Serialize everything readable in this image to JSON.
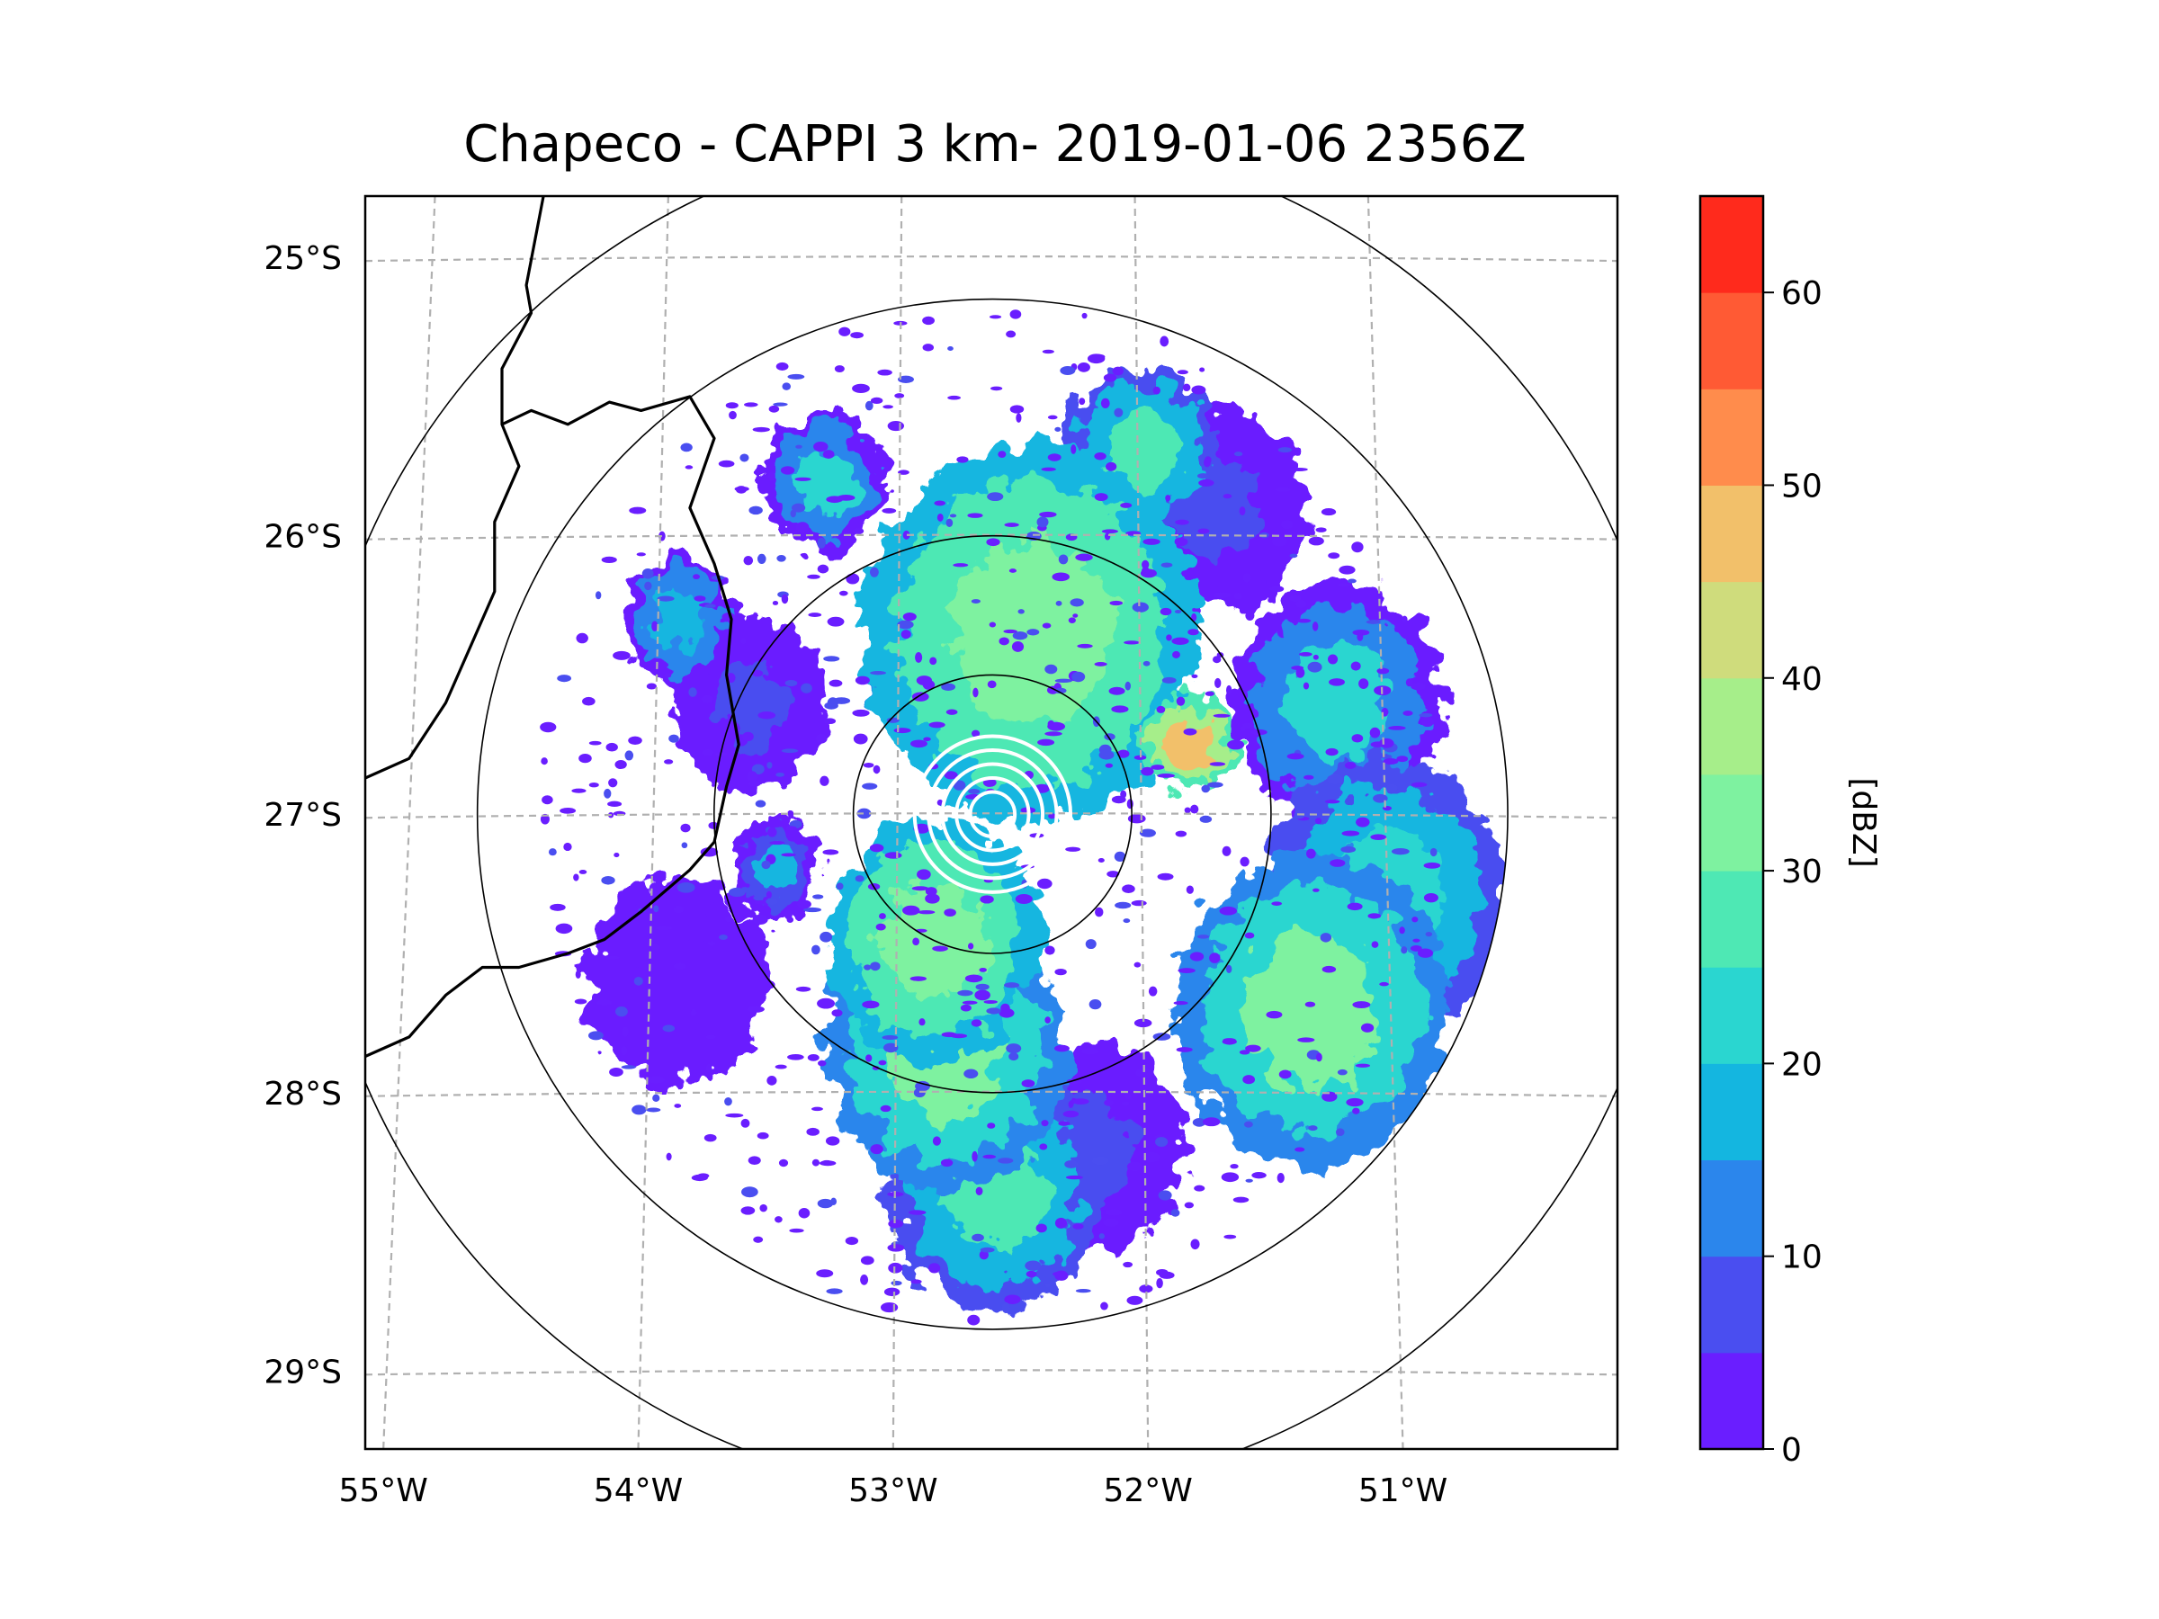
{
  "figure": {
    "title": "Chapeco - CAPPI 3 km- 2019-01-06 2356Z"
  },
  "map": {
    "lon_range": [
      -55.18,
      -50.05
    ],
    "lat_range": [
      -29.28,
      -24.78
    ],
    "radar_center": {
      "lon": -52.61,
      "lat": -27.0
    },
    "range_rings_deg": [
      0.5,
      1.0,
      1.85,
      2.45
    ],
    "data_extent_deg": 1.85,
    "lon_ticks": [
      {
        "value": -55,
        "label": "55°W"
      },
      {
        "value": -54,
        "label": "54°W"
      },
      {
        "value": -53,
        "label": "53°W"
      },
      {
        "value": -52,
        "label": "52°W"
      },
      {
        "value": -51,
        "label": "51°W"
      }
    ],
    "lat_ticks": [
      {
        "value": -25,
        "label": "25°S"
      },
      {
        "value": -26,
        "label": "26°S"
      },
      {
        "value": -27,
        "label": "27°S"
      },
      {
        "value": -28,
        "label": "28°S"
      },
      {
        "value": -29,
        "label": "29°S"
      }
    ]
  },
  "colorbar": {
    "label": "[dBZ]",
    "min": 0,
    "max": 65,
    "ticks": [
      {
        "value": 0,
        "label": "0"
      },
      {
        "value": 10,
        "label": "10"
      },
      {
        "value": 20,
        "label": "20"
      },
      {
        "value": 30,
        "label": "30"
      },
      {
        "value": 40,
        "label": "40"
      },
      {
        "value": 50,
        "label": "50"
      },
      {
        "value": 60,
        "label": "60"
      }
    ],
    "levels": [
      {
        "from": 0,
        "to": 5,
        "color": "#6a1eff"
      },
      {
        "from": 5,
        "to": 10,
        "color": "#4a4ef0"
      },
      {
        "from": 10,
        "to": 15,
        "color": "#2b86ec"
      },
      {
        "from": 15,
        "to": 20,
        "color": "#14b6e0"
      },
      {
        "from": 20,
        "to": 25,
        "color": "#2ad6d0"
      },
      {
        "from": 25,
        "to": 30,
        "color": "#4ee8b4"
      },
      {
        "from": 30,
        "to": 35,
        "color": "#7ef2a0"
      },
      {
        "from": 35,
        "to": 40,
        "color": "#a6ee8a"
      },
      {
        "from": 40,
        "to": 45,
        "color": "#cfdc7c"
      },
      {
        "from": 45,
        "to": 50,
        "color": "#f2c06a"
      },
      {
        "from": 50,
        "to": 55,
        "color": "#ff8c4c"
      },
      {
        "from": 55,
        "to": 60,
        "color": "#ff5a34"
      },
      {
        "from": 60,
        "to": 65,
        "color": "#ff2a1c"
      }
    ]
  },
  "precip_cells": [
    {
      "lon": -52.45,
      "lat": -26.35,
      "r": 0.55,
      "dbz": 33
    },
    {
      "lon": -52.75,
      "lat": -26.45,
      "r": 0.3,
      "dbz": 30
    },
    {
      "lon": -52.25,
      "lat": -26.6,
      "r": 0.25,
      "dbz": 28
    },
    {
      "lon": -52.85,
      "lat": -27.45,
      "r": 0.35,
      "dbz": 34
    },
    {
      "lon": -52.8,
      "lat": -27.85,
      "r": 0.4,
      "dbz": 32
    },
    {
      "lon": -52.6,
      "lat": -28.35,
      "r": 0.35,
      "dbz": 27
    },
    {
      "lon": -51.3,
      "lat": -27.7,
      "r": 0.45,
      "dbz": 31
    },
    {
      "lon": -51.0,
      "lat": -27.3,
      "r": 0.4,
      "dbz": 24
    },
    {
      "lon": -51.2,
      "lat": -26.6,
      "r": 0.35,
      "dbz": 22
    },
    {
      "lon": -51.8,
      "lat": -26.75,
      "r": 0.15,
      "dbz": 45
    },
    {
      "lon": -52.0,
      "lat": -25.7,
      "r": 0.25,
      "dbz": 25
    },
    {
      "lon": -53.3,
      "lat": -25.8,
      "r": 0.2,
      "dbz": 20
    },
    {
      "lon": -53.9,
      "lat": -26.3,
      "r": 0.18,
      "dbz": 18
    },
    {
      "lon": -53.5,
      "lat": -27.2,
      "r": 0.15,
      "dbz": 15
    },
    {
      "lon": -52.2,
      "lat": -28.2,
      "r": 0.3,
      "dbz": 8
    },
    {
      "lon": -51.7,
      "lat": -25.9,
      "r": 0.3,
      "dbz": 6
    },
    {
      "lon": -53.6,
      "lat": -26.6,
      "r": 0.25,
      "dbz": 5
    },
    {
      "lon": -53.9,
      "lat": -27.6,
      "r": 0.3,
      "dbz": 3
    }
  ],
  "borders": [
    [
      [
        -54.45,
        -24.78
      ],
      [
        -54.52,
        -25.1
      ],
      [
        -54.5,
        -25.2
      ],
      [
        -54.62,
        -25.4
      ],
      [
        -54.62,
        -25.6
      ],
      [
        -54.55,
        -25.75
      ],
      [
        -54.65,
        -25.95
      ],
      [
        -54.65,
        -26.2
      ],
      [
        -54.75,
        -26.4
      ],
      [
        -54.85,
        -26.6
      ],
      [
        -55.0,
        -26.8
      ],
      [
        -55.18,
        -26.87
      ]
    ],
    [
      [
        -54.62,
        -25.6
      ],
      [
        -54.5,
        -25.55
      ],
      [
        -54.35,
        -25.6
      ],
      [
        -54.18,
        -25.52
      ],
      [
        -54.05,
        -25.55
      ],
      [
        -53.85,
        -25.5
      ],
      [
        -53.75,
        -25.65
      ],
      [
        -53.85,
        -25.9
      ],
      [
        -53.75,
        -26.1
      ],
      [
        -53.68,
        -26.3
      ],
      [
        -53.7,
        -26.5
      ],
      [
        -53.65,
        -26.75
      ],
      [
        -53.7,
        -26.9
      ],
      [
        -53.75,
        -27.1
      ],
      [
        -53.85,
        -27.2
      ],
      [
        -54.05,
        -27.35
      ],
      [
        -54.2,
        -27.45
      ],
      [
        -54.35,
        -27.5
      ],
      [
        -54.55,
        -27.55
      ],
      [
        -54.7,
        -27.55
      ],
      [
        -54.85,
        -27.65
      ],
      [
        -55.0,
        -27.8
      ],
      [
        -55.18,
        -27.87
      ]
    ]
  ]
}
